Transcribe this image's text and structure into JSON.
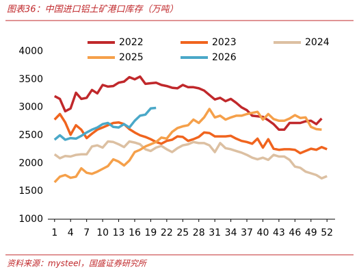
{
  "chart_data": {
    "type": "line",
    "title": "图表36：中国进口铝土矿港口库存（万吨）",
    "source": "资料来源：mysteel，国盛证券研究所",
    "x": [
      1,
      2,
      3,
      4,
      5,
      6,
      7,
      8,
      9,
      10,
      11,
      12,
      13,
      14,
      15,
      16,
      17,
      18,
      19,
      20,
      21,
      22,
      23,
      24,
      25,
      26,
      27,
      28,
      29,
      30,
      31,
      32,
      33,
      34,
      35,
      36,
      37,
      38,
      39,
      40,
      41,
      42,
      43,
      44,
      45,
      46,
      47,
      48,
      49,
      50,
      51,
      52
    ],
    "xlim": [
      0,
      53
    ],
    "xticks": [
      1,
      4,
      7,
      10,
      13,
      16,
      19,
      22,
      25,
      28,
      31,
      34,
      37,
      40,
      43,
      46,
      49,
      52
    ],
    "ylim": [
      1000,
      4000
    ],
    "yticks": [
      1000,
      1500,
      2000,
      2500,
      3000,
      3500,
      4000
    ],
    "grid": false,
    "legend": "top",
    "series": [
      {
        "name": "2022",
        "color": "#c0282b",
        "values": [
          3200,
          3150,
          2930,
          2980,
          3260,
          3150,
          3170,
          3310,
          3250,
          3400,
          3370,
          3380,
          3440,
          3460,
          3540,
          3500,
          3550,
          3420,
          3430,
          3440,
          3400,
          3380,
          3350,
          3340,
          3400,
          3360,
          3360,
          3340,
          3300,
          3220,
          3140,
          3170,
          3110,
          3150,
          3080,
          3000,
          2950,
          2850,
          2840,
          2830,
          2770,
          2700,
          2600,
          2600,
          2720,
          2720,
          2720,
          2750,
          2760,
          2700,
          2800,
          null
        ]
      },
      {
        "name": "2023",
        "color": "#f0641e",
        "values": [
          2780,
          2880,
          2730,
          2510,
          2680,
          2600,
          2450,
          2530,
          2600,
          2640,
          2680,
          2720,
          2730,
          2700,
          2610,
          2550,
          2500,
          2470,
          2430,
          2380,
          2350,
          2400,
          2420,
          2480,
          2470,
          2400,
          2430,
          2470,
          2550,
          2540,
          2480,
          2480,
          2480,
          2490,
          2440,
          2400,
          2380,
          2350,
          2440,
          2280,
          2430,
          2260,
          2240,
          2250,
          2250,
          2240,
          2180,
          2220,
          2260,
          2240,
          2290,
          2250
        ]
      },
      {
        "name": "2024",
        "color": "#dcc0a2",
        "values": [
          2160,
          2090,
          2130,
          2120,
          2150,
          2160,
          2160,
          2300,
          2320,
          2280,
          2390,
          2380,
          2340,
          2290,
          2390,
          2370,
          2340,
          2250,
          2220,
          2280,
          2310,
          2250,
          2200,
          2270,
          2320,
          2340,
          2380,
          2360,
          2360,
          2320,
          2200,
          2360,
          2270,
          2250,
          2220,
          2190,
          2150,
          2100,
          2070,
          2100,
          2060,
          2150,
          2120,
          2120,
          2060,
          1940,
          1920,
          1850,
          1820,
          1790,
          1730,
          1770
        ]
      },
      {
        "name": "2025",
        "color": "#f5a04a",
        "values": [
          1660,
          1760,
          1790,
          1740,
          1760,
          1910,
          1830,
          1810,
          1850,
          1900,
          1950,
          2070,
          2030,
          1960,
          2050,
          2200,
          2240,
          2300,
          2340,
          2380,
          2460,
          2440,
          2560,
          2630,
          2660,
          2680,
          2780,
          2720,
          2820,
          2970,
          2820,
          2850,
          2780,
          2820,
          2850,
          2850,
          2880,
          2900,
          2920,
          2780,
          2880,
          2790,
          2760,
          2760,
          2800,
          2860,
          2810,
          2820,
          2650,
          2610,
          2600,
          null
        ]
      },
      {
        "name": "2026",
        "color": "#4aa8c8",
        "values": [
          2420,
          2500,
          2420,
          2450,
          2440,
          2490,
          2550,
          2600,
          2640,
          2700,
          2720,
          2650,
          2640,
          2700,
          2640,
          2760,
          2850,
          2870,
          2980,
          2990,
          null,
          null,
          null,
          null,
          null,
          null,
          null,
          null,
          null,
          null,
          null,
          null,
          null,
          null,
          null,
          null,
          null,
          null,
          null,
          null,
          null,
          null,
          null,
          null,
          null,
          null,
          null,
          null,
          null,
          null,
          null,
          null
        ]
      }
    ]
  }
}
